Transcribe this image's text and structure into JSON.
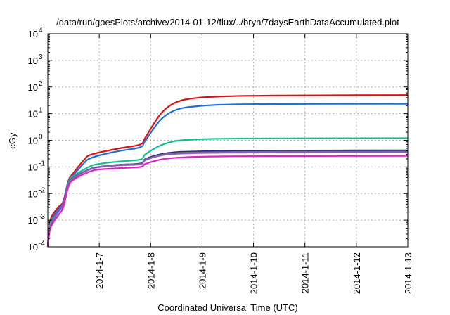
{
  "chart_data": {
    "type": "line",
    "title": "/data/run/goesPlots/archive/2014-01-12/flux/../bryn/7daysEarthDataAccumulated.plot",
    "xlabel": "Coordinated Universal Time (UTC)",
    "ylabel": "cGy",
    "y_scale": "log",
    "ylim": [
      0.0001,
      10000
    ],
    "xlim": [
      "2014-01-06T00:00",
      "2014-01-13T00:00"
    ],
    "y_ticks": [
      {
        "value": 0.0001,
        "base": "10",
        "exp": "-4"
      },
      {
        "value": 0.001,
        "base": "10",
        "exp": "-3"
      },
      {
        "value": 0.01,
        "base": "10",
        "exp": "-2"
      },
      {
        "value": 0.1,
        "base": "10",
        "exp": "-1"
      },
      {
        "value": 1,
        "base": "10",
        "exp": "0"
      },
      {
        "value": 10,
        "base": "10",
        "exp": "1"
      },
      {
        "value": 100,
        "base": "10",
        "exp": "2"
      },
      {
        "value": 1000,
        "base": "10",
        "exp": "3"
      },
      {
        "value": 10000,
        "base": "10",
        "exp": "4"
      }
    ],
    "x_ticks": [
      {
        "label": "2014-1-7",
        "t": "2014-01-07T00:00"
      },
      {
        "label": "2014-1-8",
        "t": "2014-01-08T00:00"
      },
      {
        "label": "2014-1-9",
        "t": "2014-01-09T00:00"
      },
      {
        "label": "2014-1-10",
        "t": "2014-01-10T00:00"
      },
      {
        "label": "2014-1-11",
        "t": "2014-01-11T00:00"
      },
      {
        "label": "2014-1-12",
        "t": "2014-01-12T00:00"
      },
      {
        "label": "2014-1-13",
        "t": "2014-01-13T00:00"
      }
    ],
    "grid": true,
    "legend": "none",
    "series": [
      {
        "color": "#e01010",
        "x": [
          "2014-01-06T00:00",
          "2014-01-06T01:12",
          "2014-01-06T04:48",
          "2014-01-06T07:12",
          "2014-01-06T09:36",
          "2014-01-06T12:00",
          "2014-01-06T17:17",
          "2014-01-06T19:12",
          "2014-01-07T00:00",
          "2014-01-07T09:36",
          "2014-01-07T19:12",
          "2014-01-07T21:36",
          "2014-01-08T04:48",
          "2014-01-08T12:00",
          "2014-01-08T21:36",
          "2014-01-09T12:00",
          "2014-01-10T12:00",
          "2014-01-13T00:00"
        ],
        "y": [
          0.0001,
          0.001,
          0.003,
          0.005,
          0.03,
          0.06,
          0.2,
          0.27,
          0.35,
          0.5,
          0.7,
          1.3,
          10,
          27,
          39,
          45,
          48,
          50
        ]
      },
      {
        "color": "#1a6fe0",
        "x": [
          "2014-01-06T00:00",
          "2014-01-06T01:12",
          "2014-01-06T04:48",
          "2014-01-06T07:12",
          "2014-01-06T09:36",
          "2014-01-06T12:00",
          "2014-01-06T17:17",
          "2014-01-06T19:12",
          "2014-01-07T00:00",
          "2014-01-07T09:36",
          "2014-01-07T19:12",
          "2014-01-07T21:36",
          "2014-01-08T04:48",
          "2014-01-08T12:00",
          "2014-01-08T21:36",
          "2014-01-09T12:00",
          "2014-01-10T12:00",
          "2014-01-13T00:00"
        ],
        "y": [
          0.0001,
          0.0008,
          0.0025,
          0.0045,
          0.028,
          0.05,
          0.15,
          0.2,
          0.27,
          0.4,
          0.55,
          1.0,
          6,
          14,
          19,
          22,
          23,
          23.5
        ]
      },
      {
        "color": "#10c090",
        "x": [
          "2014-01-06T00:00",
          "2014-01-06T01:12",
          "2014-01-06T04:48",
          "2014-01-06T07:12",
          "2014-01-06T09:36",
          "2014-01-06T12:00",
          "2014-01-06T19:12",
          "2014-01-07T00:00",
          "2014-01-07T09:36",
          "2014-01-07T19:12",
          "2014-01-07T21:36",
          "2014-01-08T04:48",
          "2014-01-08T12:00",
          "2014-01-08T21:36",
          "2014-01-09T12:00",
          "2014-01-10T12:00",
          "2014-01-13T00:00"
        ],
        "y": [
          0.0001,
          0.0007,
          0.002,
          0.004,
          0.025,
          0.045,
          0.1,
          0.13,
          0.16,
          0.19,
          0.3,
          0.65,
          0.95,
          1.08,
          1.15,
          1.18,
          1.2
        ]
      },
      {
        "color": "#2a2a7a",
        "x": [
          "2014-01-06T00:00",
          "2014-01-06T01:12",
          "2014-01-06T04:48",
          "2014-01-06T07:12",
          "2014-01-06T09:36",
          "2014-01-06T12:00",
          "2014-01-06T19:12",
          "2014-01-07T00:00",
          "2014-01-07T09:36",
          "2014-01-07T19:12",
          "2014-01-07T21:36",
          "2014-01-08T04:48",
          "2014-01-08T12:00",
          "2014-01-08T21:36",
          "2014-01-09T12:00",
          "2014-01-10T12:00",
          "2014-01-13T00:00"
        ],
        "y": [
          0.0001,
          0.0006,
          0.002,
          0.004,
          0.022,
          0.04,
          0.08,
          0.1,
          0.12,
          0.135,
          0.2,
          0.3,
          0.36,
          0.38,
          0.4,
          0.41,
          0.42
        ]
      },
      {
        "color": "#707070",
        "x": [
          "2014-01-06T00:00",
          "2014-01-06T01:12",
          "2014-01-06T04:48",
          "2014-01-06T07:12",
          "2014-01-06T09:36",
          "2014-01-06T12:00",
          "2014-01-06T19:12",
          "2014-01-07T00:00",
          "2014-01-07T09:36",
          "2014-01-07T19:12",
          "2014-01-07T21:36",
          "2014-01-08T04:48",
          "2014-01-08T12:00",
          "2014-01-08T21:36",
          "2014-01-09T12:00",
          "2014-01-10T12:00",
          "2014-01-13T00:00"
        ],
        "y": [
          0.0001,
          0.0006,
          0.002,
          0.004,
          0.022,
          0.04,
          0.08,
          0.1,
          0.12,
          0.13,
          0.19,
          0.28,
          0.33,
          0.35,
          0.36,
          0.37,
          0.37
        ]
      },
      {
        "color": "#8a5cc0",
        "x": [
          "2014-01-06T00:00",
          "2014-01-06T01:12",
          "2014-01-06T04:48",
          "2014-01-06T07:12",
          "2014-01-06T09:36",
          "2014-01-06T12:00",
          "2014-01-06T19:12",
          "2014-01-07T00:00",
          "2014-01-07T09:36",
          "2014-01-07T19:12",
          "2014-01-07T21:36",
          "2014-01-08T04:48",
          "2014-01-08T12:00",
          "2014-01-08T21:36",
          "2014-01-09T12:00",
          "2014-01-10T12:00",
          "2014-01-13T00:00"
        ],
        "y": [
          0.0001,
          0.0006,
          0.002,
          0.004,
          0.021,
          0.038,
          0.078,
          0.098,
          0.115,
          0.125,
          0.18,
          0.27,
          0.31,
          0.33,
          0.34,
          0.345,
          0.35
        ]
      },
      {
        "color": "#e020c0",
        "x": [
          "2014-01-06T00:00",
          "2014-01-06T01:12",
          "2014-01-06T04:48",
          "2014-01-06T07:12",
          "2014-01-06T09:36",
          "2014-01-06T12:00",
          "2014-01-06T19:12",
          "2014-01-07T00:00",
          "2014-01-07T09:36",
          "2014-01-07T19:12",
          "2014-01-07T21:36",
          "2014-01-08T04:48",
          "2014-01-08T12:00",
          "2014-01-08T21:36",
          "2014-01-09T12:00",
          "2014-01-10T12:00",
          "2014-01-13T00:00"
        ],
        "y": [
          0.0001,
          0.0005,
          0.0015,
          0.003,
          0.018,
          0.033,
          0.065,
          0.08,
          0.09,
          0.1,
          0.13,
          0.19,
          0.22,
          0.24,
          0.25,
          0.255,
          0.26
        ]
      }
    ]
  }
}
